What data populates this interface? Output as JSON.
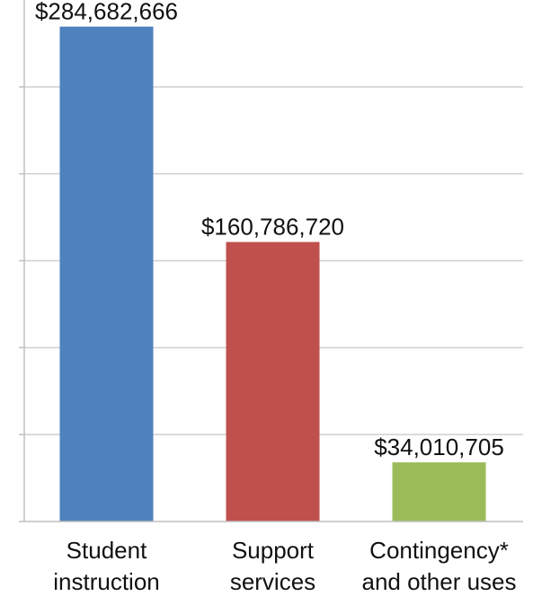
{
  "chart_data": {
    "type": "bar",
    "categories": [
      [
        "Student",
        "instruction"
      ],
      [
        "Support",
        "services"
      ],
      [
        "Contingency*",
        "and other uses"
      ]
    ],
    "values": [
      284682666,
      160786720,
      34010705
    ],
    "data_labels": [
      "$284,682,666",
      "$160,786,720",
      "$34,010,705"
    ],
    "colors": [
      "#4f81bd",
      "#c0504d",
      "#9bbb59"
    ],
    "ylim": [
      0,
      300000000
    ],
    "y_gridline_step": 50000000,
    "grid": true,
    "legend": "none",
    "title": "",
    "xlabel": "",
    "ylabel": ""
  }
}
